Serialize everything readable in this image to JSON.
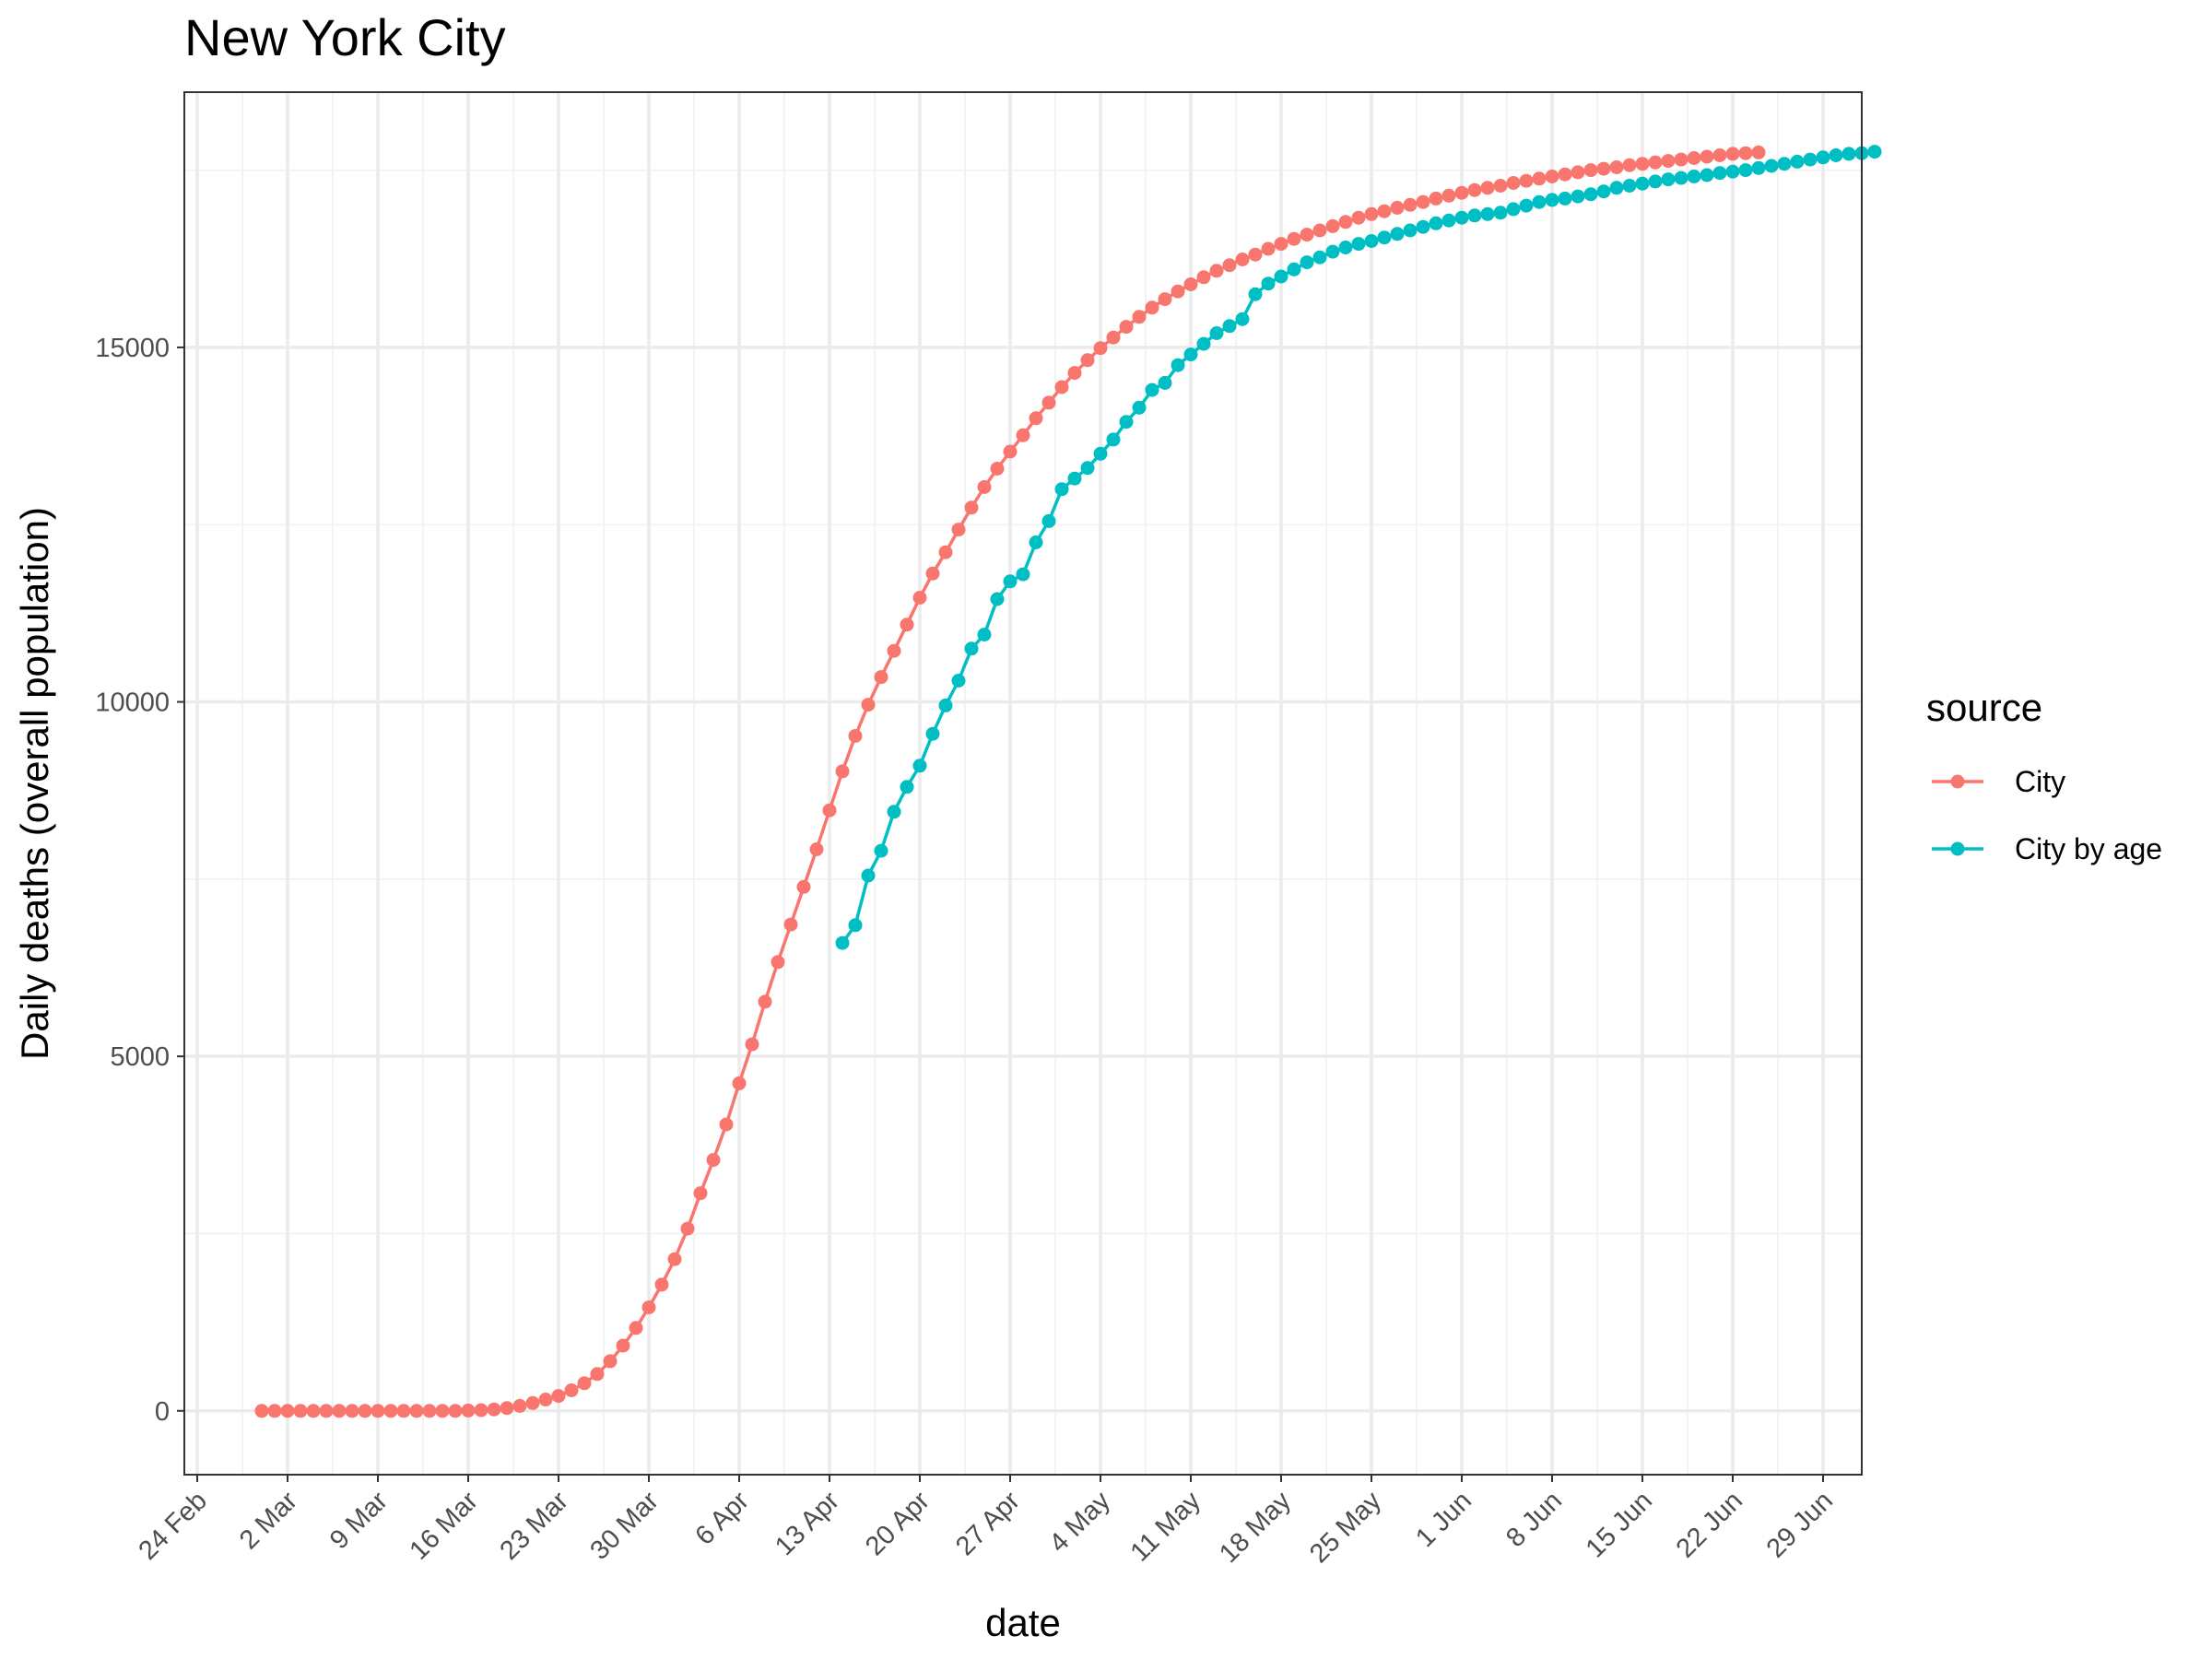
{
  "chart_data": {
    "type": "line",
    "title": "New York City",
    "xlabel": "date",
    "ylabel": "Daily deaths (overall population)",
    "x_start": "2020-02-24",
    "x_ticks": [
      {
        "label": "24 Feb",
        "date": "2020-02-24"
      },
      {
        "label": "2 Mar",
        "date": "2020-03-02"
      },
      {
        "label": "9 Mar",
        "date": "2020-03-09"
      },
      {
        "label": "16 Mar",
        "date": "2020-03-16"
      },
      {
        "label": "23 Mar",
        "date": "2020-03-23"
      },
      {
        "label": "30 Mar",
        "date": "2020-03-30"
      },
      {
        "label": "6 Apr",
        "date": "2020-04-06"
      },
      {
        "label": "13 Apr",
        "date": "2020-04-13"
      },
      {
        "label": "20 Apr",
        "date": "2020-04-20"
      },
      {
        "label": "27 Apr",
        "date": "2020-04-27"
      },
      {
        "label": "4 May",
        "date": "2020-05-04"
      },
      {
        "label": "11 May",
        "date": "2020-05-11"
      },
      {
        "label": "18 May",
        "date": "2020-05-18"
      },
      {
        "label": "25 May",
        "date": "2020-05-25"
      },
      {
        "label": "1 Jun",
        "date": "2020-06-01"
      },
      {
        "label": "8 Jun",
        "date": "2020-06-08"
      },
      {
        "label": "15 Jun",
        "date": "2020-06-15"
      },
      {
        "label": "22 Jun",
        "date": "2020-06-22"
      },
      {
        "label": "29 Jun",
        "date": "2020-06-29"
      }
    ],
    "y_ticks": [
      0,
      5000,
      10000,
      15000
    ],
    "xlim": [
      "2020-02-23",
      "2020-07-02"
    ],
    "ylim": [
      -900,
      18600
    ],
    "grid": true,
    "legend": {
      "title": "source",
      "position": "right"
    },
    "series": [
      {
        "name": "City",
        "color": "#F8766D",
        "start": "2020-02-29",
        "values": [
          0,
          0,
          0,
          0,
          0,
          0,
          0,
          0,
          0,
          0,
          0,
          0,
          0,
          0,
          0,
          0,
          5,
          10,
          20,
          40,
          70,
          110,
          160,
          210,
          290,
          390,
          520,
          700,
          920,
          1170,
          1460,
          1780,
          2140,
          2570,
          3070,
          3540,
          4040,
          4620,
          5170,
          5770,
          6330,
          6860,
          7390,
          7920,
          8470,
          9020,
          9520,
          9960,
          10350,
          10720,
          11090,
          11470,
          11810,
          12110,
          12430,
          12740,
          13030,
          13290,
          13530,
          13760,
          14000,
          14220,
          14440,
          14640,
          14820,
          14990,
          15140,
          15290,
          15430,
          15560,
          15680,
          15790,
          15890,
          15990,
          16080,
          16160,
          16240,
          16310,
          16390,
          16460,
          16530,
          16590,
          16650,
          16710,
          16770,
          16830,
          16880,
          16920,
          16970,
          17010,
          17050,
          17100,
          17140,
          17180,
          17220,
          17250,
          17280,
          17320,
          17350,
          17380,
          17410,
          17440,
          17470,
          17500,
          17520,
          17540,
          17570,
          17590,
          17610,
          17630,
          17650,
          17670,
          17690,
          17710,
          17730,
          17740,
          17750
        ]
      },
      {
        "name": "City by age",
        "color": "#00BFC4",
        "start": "2020-04-14",
        "values": [
          6600,
          6850,
          7550,
          7900,
          8450,
          8800,
          9100,
          9550,
          9950,
          10300,
          10750,
          10950,
          11450,
          11700,
          11800,
          12250,
          12550,
          13000,
          13150,
          13300,
          13500,
          13700,
          13950,
          14150,
          14400,
          14500,
          14750,
          14900,
          15050,
          15200,
          15300,
          15400,
          15750,
          15900,
          16000,
          16100,
          16200,
          16270,
          16350,
          16410,
          16460,
          16500,
          16550,
          16600,
          16650,
          16700,
          16750,
          16790,
          16830,
          16860,
          16880,
          16900,
          16950,
          17000,
          17050,
          17080,
          17100,
          17130,
          17160,
          17200,
          17250,
          17280,
          17310,
          17340,
          17370,
          17390,
          17410,
          17430,
          17460,
          17480,
          17500,
          17530,
          17560,
          17590,
          17620,
          17650,
          17680,
          17710,
          17730,
          17740,
          17760
        ]
      }
    ]
  }
}
